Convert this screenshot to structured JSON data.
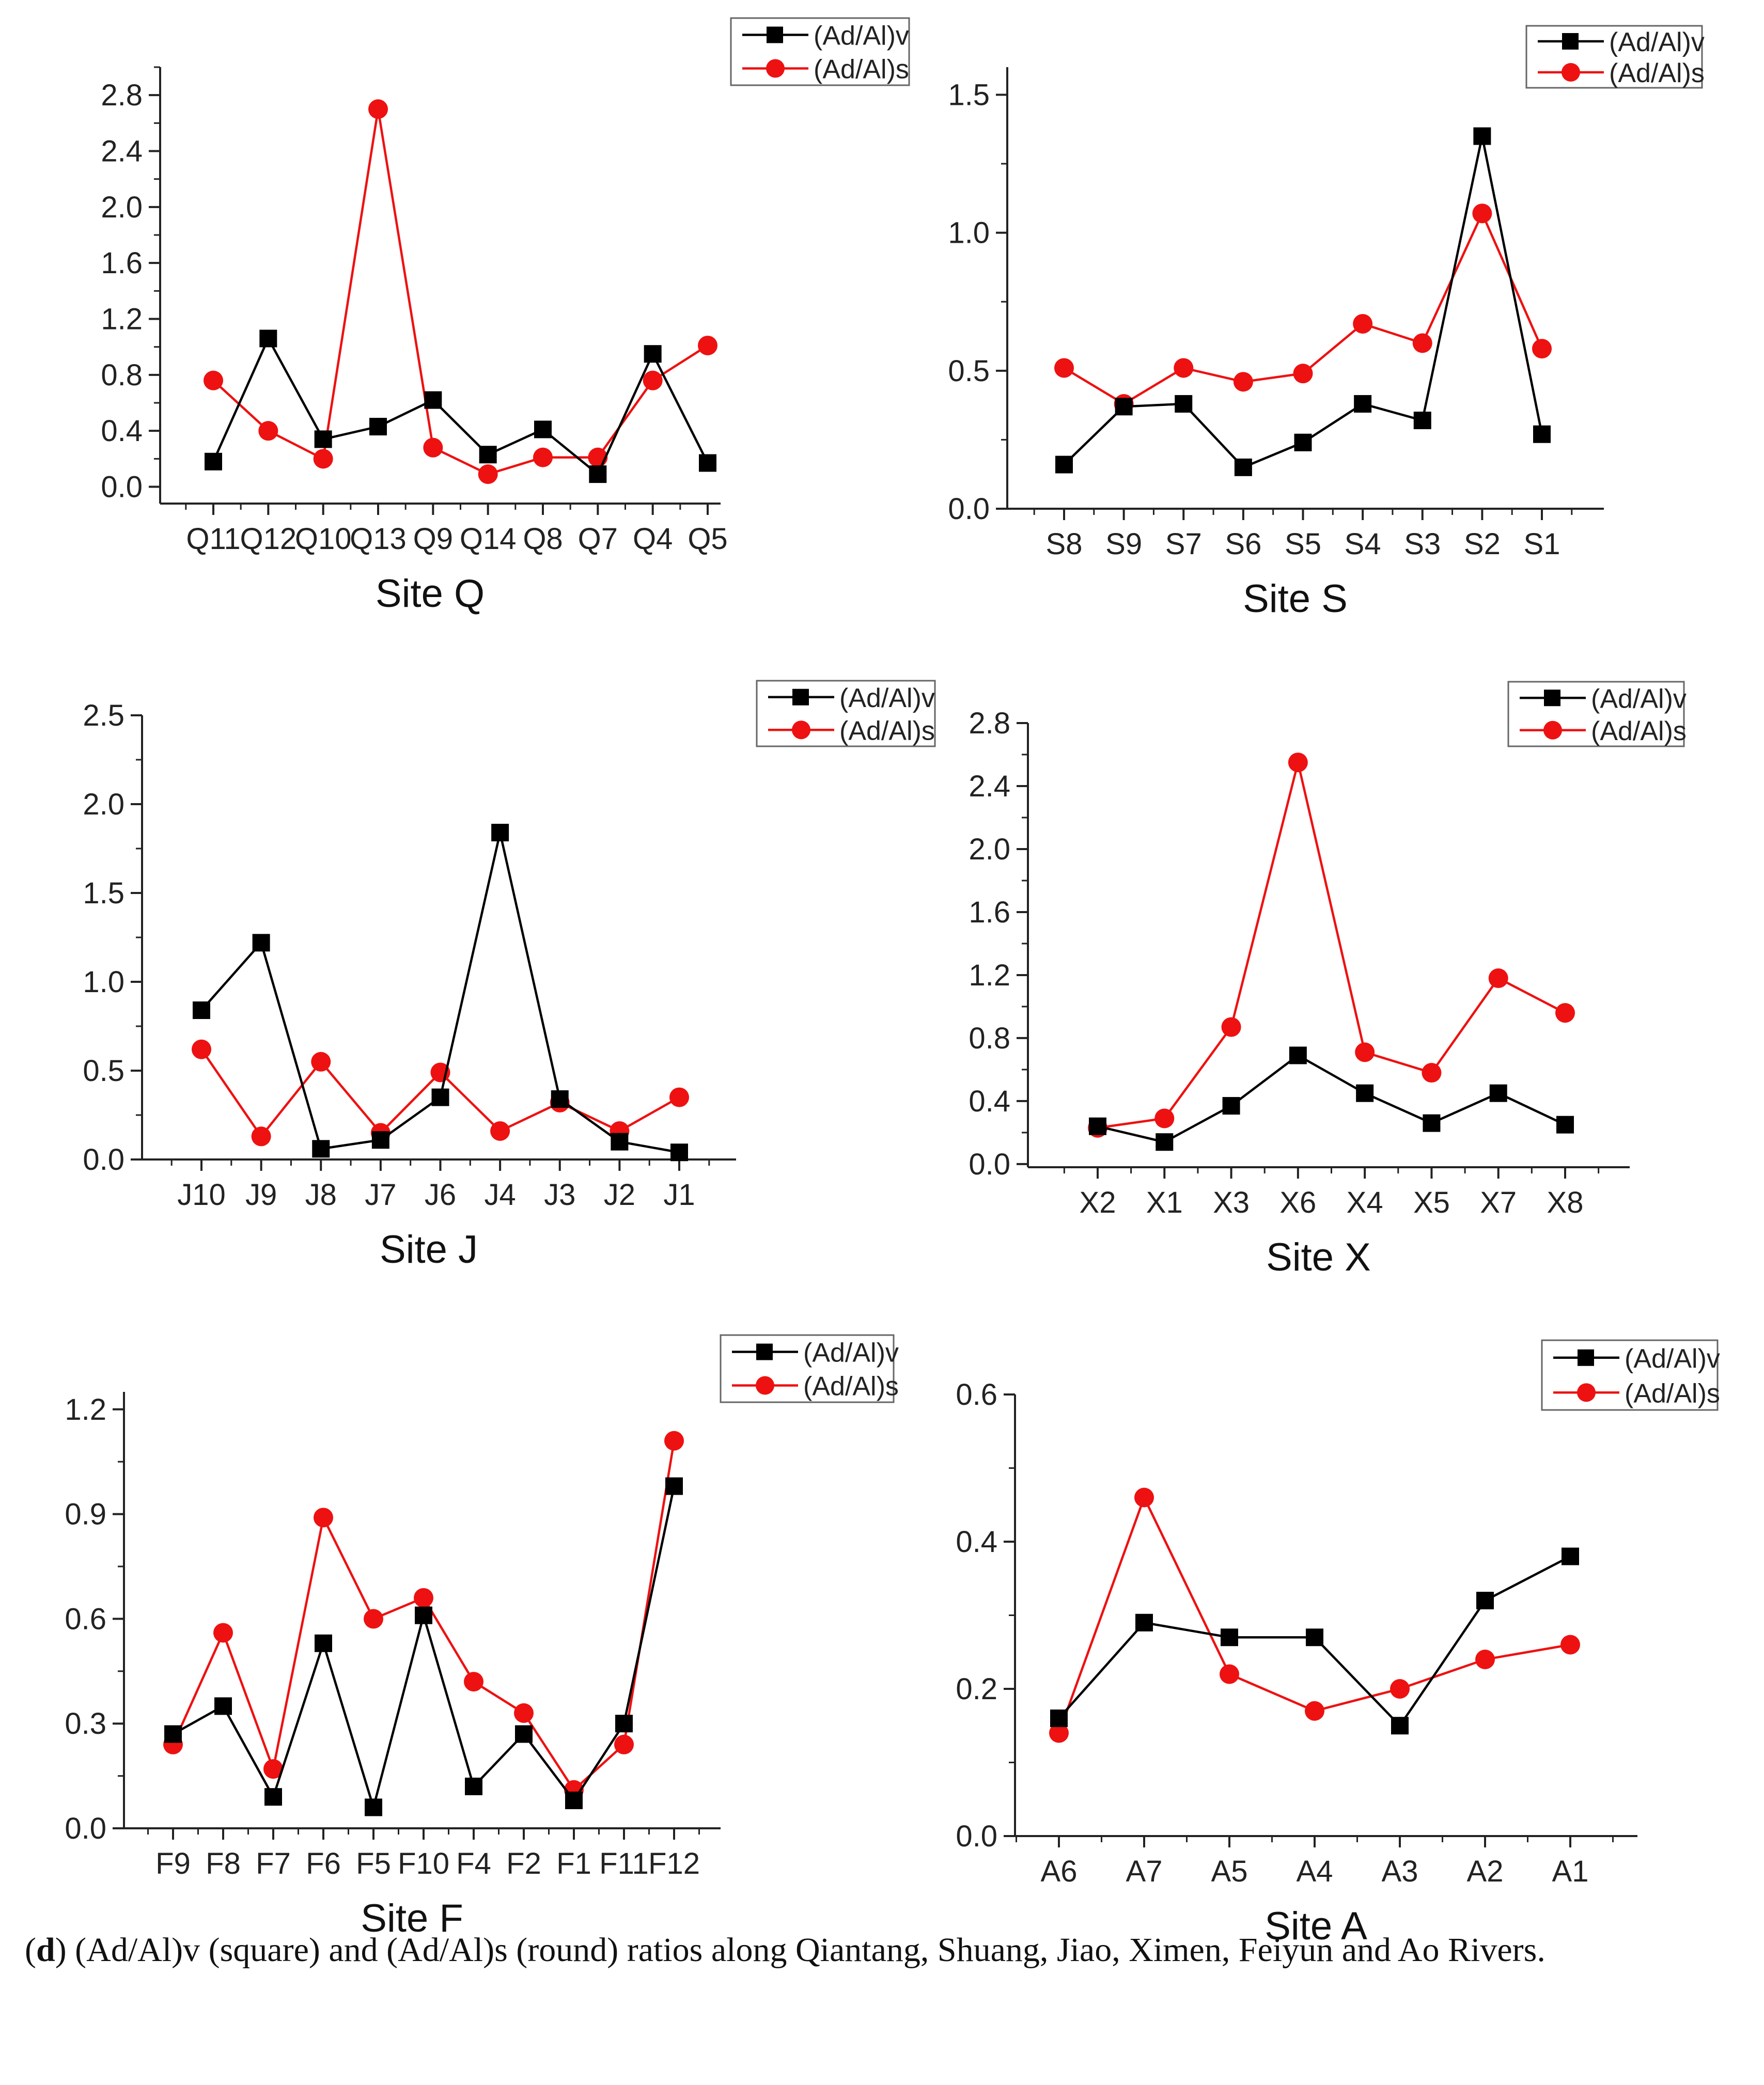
{
  "colors": {
    "series_v": "#000000",
    "series_s": "#ee1111",
    "axis": "#222222"
  },
  "markers": {
    "series_v": "square",
    "series_s": "circle"
  },
  "caption": {
    "letter": "d",
    "text": ") (Ad/Al)v (square) and (Ad/Al)s (round) ratios along Qiantang, Shuang, Jiao, Ximen, Feiyun and Ao Rivers."
  },
  "chart_data": [
    {
      "type": "line",
      "xlabel": "Site Q",
      "categories": [
        "Q11",
        "Q12",
        "Q10",
        "Q13",
        "Q9",
        "Q14",
        "Q8",
        "Q7",
        "Q4",
        "Q5"
      ],
      "ylim": [
        -0.12,
        3.0
      ],
      "yticks": [
        "0.0",
        "0.4",
        "0.8",
        "1.2",
        "1.6",
        "2.0",
        "2.4",
        "2.8"
      ],
      "legend": "top-right",
      "series": [
        {
          "name": "(Ad/Al)v",
          "values": [
            0.18,
            1.06,
            0.34,
            0.43,
            0.62,
            0.23,
            0.41,
            0.09,
            0.95,
            0.17
          ]
        },
        {
          "name": "(Ad/Al)s",
          "values": [
            0.76,
            0.4,
            0.2,
            2.7,
            0.28,
            0.09,
            0.21,
            0.21,
            0.76,
            1.01
          ]
        }
      ]
    },
    {
      "type": "line",
      "xlabel": "Site S",
      "categories": [
        "S8",
        "S9",
        "S7",
        "S6",
        "S5",
        "S4",
        "S3",
        "S2",
        "S1"
      ],
      "ylim": [
        0.0,
        1.6
      ],
      "yticks": [
        "0.0",
        "0.5",
        "1.0",
        "1.5"
      ],
      "legend": "top-right",
      "series": [
        {
          "name": "(Ad/Al)v",
          "values": [
            0.16,
            0.37,
            0.38,
            0.15,
            0.24,
            0.38,
            0.32,
            1.35,
            0.27
          ]
        },
        {
          "name": "(Ad/Al)s",
          "values": [
            0.51,
            0.38,
            0.51,
            0.46,
            0.49,
            0.67,
            0.6,
            1.07,
            0.58
          ]
        }
      ]
    },
    {
      "type": "line",
      "xlabel": "Site J",
      "categories": [
        "J10",
        "J9",
        "J8",
        "J7",
        "J6",
        "J4",
        "J3",
        "J2",
        "J1"
      ],
      "ylim": [
        0.0,
        2.5
      ],
      "yticks": [
        "0.0",
        "0.5",
        "1.0",
        "1.5",
        "2.0",
        "2.5"
      ],
      "legend": "top-right",
      "series": [
        {
          "name": "(Ad/Al)v",
          "values": [
            0.84,
            1.22,
            0.06,
            0.11,
            0.35,
            1.84,
            0.34,
            0.1,
            0.04
          ]
        },
        {
          "name": "(Ad/Al)s",
          "values": [
            0.62,
            0.13,
            0.55,
            0.15,
            0.49,
            0.16,
            0.32,
            0.16,
            0.35
          ]
        }
      ]
    },
    {
      "type": "line",
      "xlabel": "Site X",
      "categories": [
        "X2",
        "X1",
        "X3",
        "X6",
        "X4",
        "X5",
        "X7",
        "X8"
      ],
      "ylim": [
        -0.02,
        2.8
      ],
      "yticks": [
        "0.0",
        "0.4",
        "0.8",
        "1.2",
        "1.6",
        "2.0",
        "2.4",
        "2.8"
      ],
      "legend": "top-right",
      "series": [
        {
          "name": "(Ad/Al)v",
          "values": [
            0.24,
            0.14,
            0.37,
            0.69,
            0.45,
            0.26,
            0.45,
            0.25
          ]
        },
        {
          "name": "(Ad/Al)s",
          "values": [
            0.23,
            0.29,
            0.87,
            2.55,
            0.71,
            0.58,
            1.18,
            0.96
          ]
        }
      ]
    },
    {
      "type": "line",
      "xlabel": "Site F",
      "categories": [
        "F9",
        "F8",
        "F7",
        "F6",
        "F5",
        "F10",
        "F4",
        "F2",
        "F1",
        "F11",
        "F12"
      ],
      "ylim": [
        0.0,
        1.25
      ],
      "yticks": [
        "0.0",
        "0.3",
        "0.6",
        "0.9",
        "1.2"
      ],
      "legend": "top-right",
      "series": [
        {
          "name": "(Ad/Al)v",
          "values": [
            0.27,
            0.35,
            0.09,
            0.53,
            0.06,
            0.61,
            0.12,
            0.27,
            0.08,
            0.3,
            0.98
          ]
        },
        {
          "name": "(Ad/Al)s",
          "values": [
            0.24,
            0.56,
            0.17,
            0.89,
            0.6,
            0.66,
            0.42,
            0.33,
            0.11,
            0.24,
            1.11
          ]
        }
      ]
    },
    {
      "type": "line",
      "xlabel": "Site A",
      "categories": [
        "A6",
        "A7",
        "A5",
        "A4",
        "A3",
        "A2",
        "A1"
      ],
      "ylim": [
        0.0,
        0.6
      ],
      "yticks": [
        "0.0",
        "0.2",
        "0.4",
        "0.6"
      ],
      "legend": "top-right",
      "series": [
        {
          "name": "(Ad/Al)v",
          "values": [
            0.16,
            0.29,
            0.27,
            0.27,
            0.15,
            0.32,
            0.38
          ]
        },
        {
          "name": "(Ad/Al)s",
          "values": [
            0.14,
            0.46,
            0.22,
            0.17,
            0.2,
            0.24,
            0.26
          ]
        }
      ]
    }
  ]
}
